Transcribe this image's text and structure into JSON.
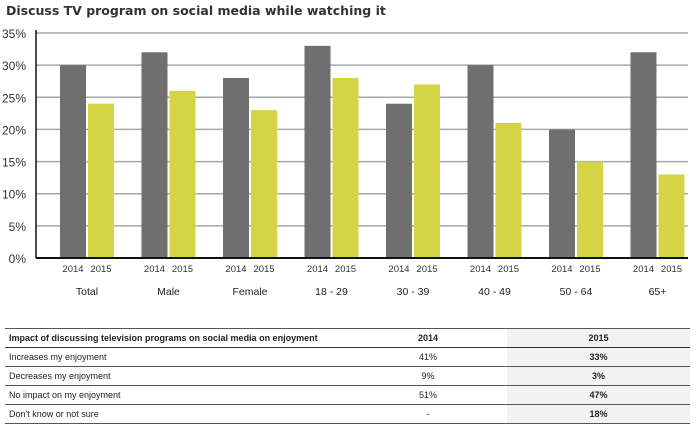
{
  "chart_data": {
    "type": "bar",
    "title": "Discuss TV program on social media while watching it",
    "categories": [
      "Total",
      "Male",
      "Female",
      "18 - 29",
      "30 - 39",
      "40 - 49",
      "50 - 64",
      "65+"
    ],
    "series": [
      {
        "name": "2014",
        "color": "#6f6f70",
        "values": [
          30,
          32,
          28,
          33,
          24,
          30,
          20,
          32
        ]
      },
      {
        "name": "2015",
        "color": "#d4d444",
        "values": [
          24,
          26,
          23,
          28,
          27,
          21,
          15,
          13
        ]
      }
    ],
    "ylim": [
      0,
      35
    ],
    "yticks": [
      "0%",
      "5%",
      "10%",
      "15%",
      "20%",
      "25%",
      "30%",
      "35%"
    ],
    "xlabel": "",
    "ylabel": "",
    "grid": true,
    "legend": "none"
  },
  "table": {
    "header": [
      "Impact of discussing television programs on social media on enjoyment",
      "2014",
      "2015"
    ],
    "rows": [
      [
        "Increases my enjoyment",
        "41%",
        "33%"
      ],
      [
        "Decreases my enjoyment",
        "9%",
        "3%"
      ],
      [
        "No impact on my enjoyment",
        "51%",
        "47%"
      ],
      [
        "Don't know or not sure",
        "-",
        "18%"
      ]
    ]
  }
}
